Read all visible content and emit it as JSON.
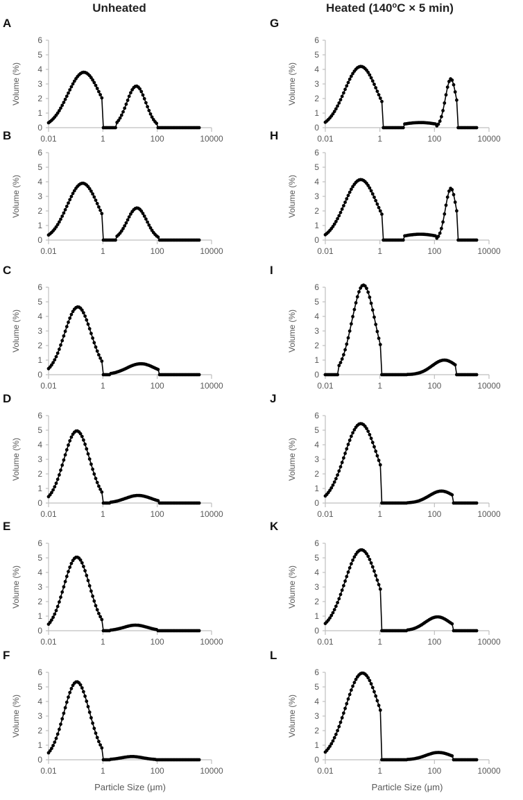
{
  "figure": {
    "col_titles": {
      "left": "Unheated",
      "right_prefix": "Heated (140",
      "right_sup": "o",
      "right_suffix": "C × 5 min)"
    }
  },
  "chart_data": [
    {
      "id": "A",
      "letter": "A",
      "type": "line",
      "column": "left",
      "title": "",
      "xlabel": "",
      "ylabel": "Volume (%)",
      "xscale": "log",
      "xlim": [
        0.01,
        10000
      ],
      "ylim": [
        0,
        6
      ],
      "xticks": [
        "0.01",
        "1",
        "100",
        "10000"
      ],
      "yticks": [
        "0",
        "1",
        "2",
        "3",
        "4",
        "5",
        "6"
      ],
      "peaks": [
        {
          "center": 0.2,
          "height": 3.8,
          "start": 0.01,
          "end": 1.0,
          "y_start": 0.15
        },
        {
          "center": 17,
          "height": 2.85,
          "start": 3,
          "end": 100
        }
      ],
      "x_end": 3500
    },
    {
      "id": "B",
      "letter": "B",
      "type": "line",
      "column": "left",
      "title": "",
      "xlabel": "",
      "ylabel": "Volume (%)",
      "xscale": "log",
      "xlim": [
        0.01,
        10000
      ],
      "ylim": [
        0,
        6
      ],
      "xticks": [
        "0.01",
        "1",
        "100",
        "10000"
      ],
      "yticks": [
        "0",
        "1",
        "2",
        "3",
        "4",
        "5",
        "6"
      ],
      "peaks": [
        {
          "center": 0.18,
          "height": 3.9,
          "start": 0.01,
          "end": 1.0,
          "y_start": 0.15
        },
        {
          "center": 18,
          "height": 2.2,
          "start": 3,
          "end": 110
        }
      ],
      "x_end": 3500
    },
    {
      "id": "C",
      "letter": "C",
      "type": "line",
      "column": "left",
      "title": "",
      "xlabel": "",
      "ylabel": "Volume (%)",
      "xscale": "log",
      "xlim": [
        0.01,
        10000
      ],
      "ylim": [
        0,
        6
      ],
      "xticks": [
        "0.01",
        "1",
        "100",
        "10000"
      ],
      "yticks": [
        "0",
        "1",
        "2",
        "3",
        "4",
        "5",
        "6"
      ],
      "peaks": [
        {
          "center": 0.12,
          "height": 4.65,
          "start": 0.01,
          "end": 1.0,
          "y_start": 0.3
        },
        {
          "center": 25,
          "height": 0.75,
          "start": 1.8,
          "end": 110
        }
      ],
      "x_end": 3500
    },
    {
      "id": "D",
      "letter": "D",
      "type": "line",
      "column": "left",
      "title": "",
      "xlabel": "",
      "ylabel": "Volume (%)",
      "xscale": "log",
      "xlim": [
        0.01,
        10000
      ],
      "ylim": [
        0,
        6
      ],
      "xticks": [
        "0.01",
        "1",
        "100",
        "10000"
      ],
      "yticks": [
        "0",
        "1",
        "2",
        "3",
        "4",
        "5",
        "6"
      ],
      "peaks": [
        {
          "center": 0.11,
          "height": 4.95,
          "start": 0.01,
          "end": 1.0,
          "y_start": 0.3
        },
        {
          "center": 20,
          "height": 0.52,
          "start": 1.8,
          "end": 110
        }
      ],
      "x_end": 3500
    },
    {
      "id": "E",
      "letter": "E",
      "type": "line",
      "column": "left",
      "title": "",
      "xlabel": "",
      "ylabel": "Volume (%)",
      "xscale": "log",
      "xlim": [
        0.01,
        10000
      ],
      "ylim": [
        0,
        6
      ],
      "xticks": [
        "0.01",
        "1",
        "100",
        "10000"
      ],
      "yticks": [
        "0",
        "1",
        "2",
        "3",
        "4",
        "5",
        "6"
      ],
      "peaks": [
        {
          "center": 0.11,
          "height": 5.05,
          "start": 0.01,
          "end": 1.0,
          "y_start": 0.35
        },
        {
          "center": 16,
          "height": 0.38,
          "start": 1.8,
          "end": 100
        }
      ],
      "x_end": 3500
    },
    {
      "id": "F",
      "letter": "F",
      "type": "line",
      "column": "left",
      "title": "",
      "xlabel": "Particle Size (μm)",
      "ylabel": "Volume (%)",
      "xscale": "log",
      "xlim": [
        0.01,
        10000
      ],
      "ylim": [
        0,
        6
      ],
      "xticks": [
        "0.01",
        "1",
        "100",
        "10000"
      ],
      "yticks": [
        "0",
        "1",
        "2",
        "3",
        "4",
        "5",
        "6"
      ],
      "peaks": [
        {
          "center": 0.11,
          "height": 5.35,
          "start": 0.01,
          "end": 1.0,
          "y_start": 0.3
        },
        {
          "center": 12,
          "height": 0.22,
          "start": 1.8,
          "end": 90
        }
      ],
      "x_end": 3500
    },
    {
      "id": "G",
      "letter": "G",
      "type": "line",
      "column": "right",
      "title": "",
      "xlabel": "",
      "ylabel": "Volume (%)",
      "xscale": "log",
      "xlim": [
        0.01,
        10000
      ],
      "ylim": [
        0,
        6
      ],
      "xticks": [
        "0.01",
        "1",
        "100",
        "10000"
      ],
      "yticks": [
        "0",
        "1",
        "2",
        "3",
        "4",
        "5",
        "6"
      ],
      "peaks": [
        {
          "center": 0.2,
          "height": 4.2,
          "start": 0.01,
          "end": 1.2,
          "y_start": 0.1
        },
        {
          "center": 30,
          "height": 0.35,
          "start": 8,
          "end": 110,
          "sigma": 0.7
        },
        {
          "center": 400,
          "height": 3.35,
          "start": 110,
          "end": 700,
          "sigma": 0.2
        }
      ],
      "x_end": 3500
    },
    {
      "id": "H",
      "letter": "H",
      "type": "line",
      "column": "right",
      "title": "",
      "xlabel": "",
      "ylabel": "Volume (%)",
      "xscale": "log",
      "xlim": [
        0.01,
        10000
      ],
      "ylim": [
        0,
        6
      ],
      "xticks": [
        "0.01",
        "1",
        "100",
        "10000"
      ],
      "yticks": [
        "0",
        "1",
        "2",
        "3",
        "4",
        "5",
        "6"
      ],
      "peaks": [
        {
          "center": 0.2,
          "height": 4.15,
          "start": 0.01,
          "end": 1.2,
          "y_start": 0.1
        },
        {
          "center": 30,
          "height": 0.4,
          "start": 8,
          "end": 110,
          "sigma": 0.7
        },
        {
          "center": 400,
          "height": 3.55,
          "start": 110,
          "end": 700,
          "sigma": 0.2
        }
      ],
      "x_end": 3500
    },
    {
      "id": "I",
      "letter": "I",
      "type": "line",
      "column": "right",
      "title": "",
      "xlabel": "",
      "ylabel": "Volume (%)",
      "xscale": "log",
      "xlim": [
        0.01,
        10000
      ],
      "ylim": [
        0,
        6
      ],
      "xticks": [
        "0.01",
        "1",
        "100",
        "10000"
      ],
      "yticks": [
        "0",
        "1",
        "2",
        "3",
        "4",
        "5",
        "6"
      ],
      "peaks": [
        {
          "center": 0.25,
          "height": 6.15,
          "start": 0.03,
          "end": 1.1,
          "y_start": 0.0
        },
        {
          "center": 230,
          "height": 1.0,
          "start": 10,
          "end": 600,
          "sigma": 0.45
        }
      ],
      "x_end": 3500
    },
    {
      "id": "J",
      "letter": "J",
      "type": "line",
      "column": "right",
      "title": "",
      "xlabel": "",
      "ylabel": "Volume (%)",
      "xscale": "log",
      "xlim": [
        0.01,
        10000
      ],
      "ylim": [
        0,
        6
      ],
      "xticks": [
        "0.01",
        "1",
        "100",
        "10000"
      ],
      "yticks": [
        "0",
        "1",
        "2",
        "3",
        "4",
        "5",
        "6"
      ],
      "peaks": [
        {
          "center": 0.2,
          "height": 5.45,
          "start": 0.01,
          "end": 1.1,
          "y_start": 0.1
        },
        {
          "center": 180,
          "height": 0.82,
          "start": 10,
          "end": 500,
          "sigma": 0.45
        }
      ],
      "x_end": 3500
    },
    {
      "id": "K",
      "letter": "K",
      "type": "line",
      "column": "right",
      "title": "",
      "xlabel": "",
      "ylabel": "Volume (%)",
      "xscale": "log",
      "xlim": [
        0.01,
        10000
      ],
      "ylim": [
        0,
        6
      ],
      "xticks": [
        "0.01",
        "1",
        "100",
        "10000"
      ],
      "yticks": [
        "0",
        "1",
        "2",
        "3",
        "4",
        "5",
        "6"
      ],
      "peaks": [
        {
          "center": 0.21,
          "height": 5.55,
          "start": 0.01,
          "end": 1.1,
          "y_start": 0.1
        },
        {
          "center": 130,
          "height": 0.95,
          "start": 10,
          "end": 450,
          "sigma": 0.45
        }
      ],
      "x_end": 3500
    },
    {
      "id": "L",
      "letter": "L",
      "type": "line",
      "column": "right",
      "title": "",
      "xlabel": "Particle Size (μm)",
      "ylabel": "Volume (%)",
      "xscale": "log",
      "xlim": [
        0.01,
        10000
      ],
      "ylim": [
        0,
        6
      ],
      "xticks": [
        "0.01",
        "1",
        "100",
        "10000"
      ],
      "yticks": [
        "0",
        "1",
        "2",
        "3",
        "4",
        "5",
        "6"
      ],
      "peaks": [
        {
          "center": 0.23,
          "height": 5.95,
          "start": 0.01,
          "end": 1.15,
          "y_start": 0.1
        },
        {
          "center": 140,
          "height": 0.5,
          "start": 10,
          "end": 450,
          "sigma": 0.45
        }
      ],
      "x_end": 3500
    }
  ]
}
